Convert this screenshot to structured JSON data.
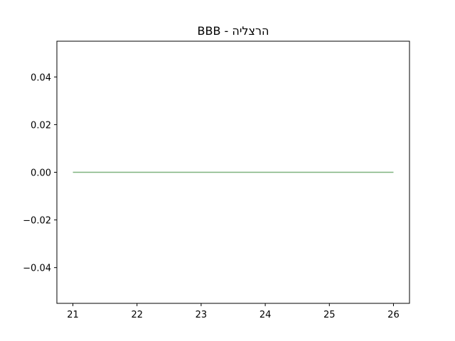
{
  "chart_data": {
    "type": "line",
    "title": "BBB - הרצליה",
    "xlabel": "",
    "ylabel": "",
    "x": [
      21,
      22,
      23,
      24,
      25,
      26
    ],
    "series": [
      {
        "values": [
          0,
          0,
          0,
          0,
          0,
          0
        ],
        "color": "#7fb27f"
      }
    ],
    "xlim": [
      20.75,
      26.25
    ],
    "ylim": [
      -0.055,
      0.055
    ],
    "xticks": [
      21,
      22,
      23,
      24,
      25,
      26
    ],
    "yticks": [
      -0.04,
      -0.02,
      0.0,
      0.02,
      0.04
    ],
    "xtick_labels": [
      "21",
      "22",
      "23",
      "24",
      "25",
      "26"
    ],
    "ytick_labels": [
      "−0.04",
      "−0.02",
      "0.00",
      "0.02",
      "0.04"
    ],
    "grid": false,
    "legend": "none"
  }
}
